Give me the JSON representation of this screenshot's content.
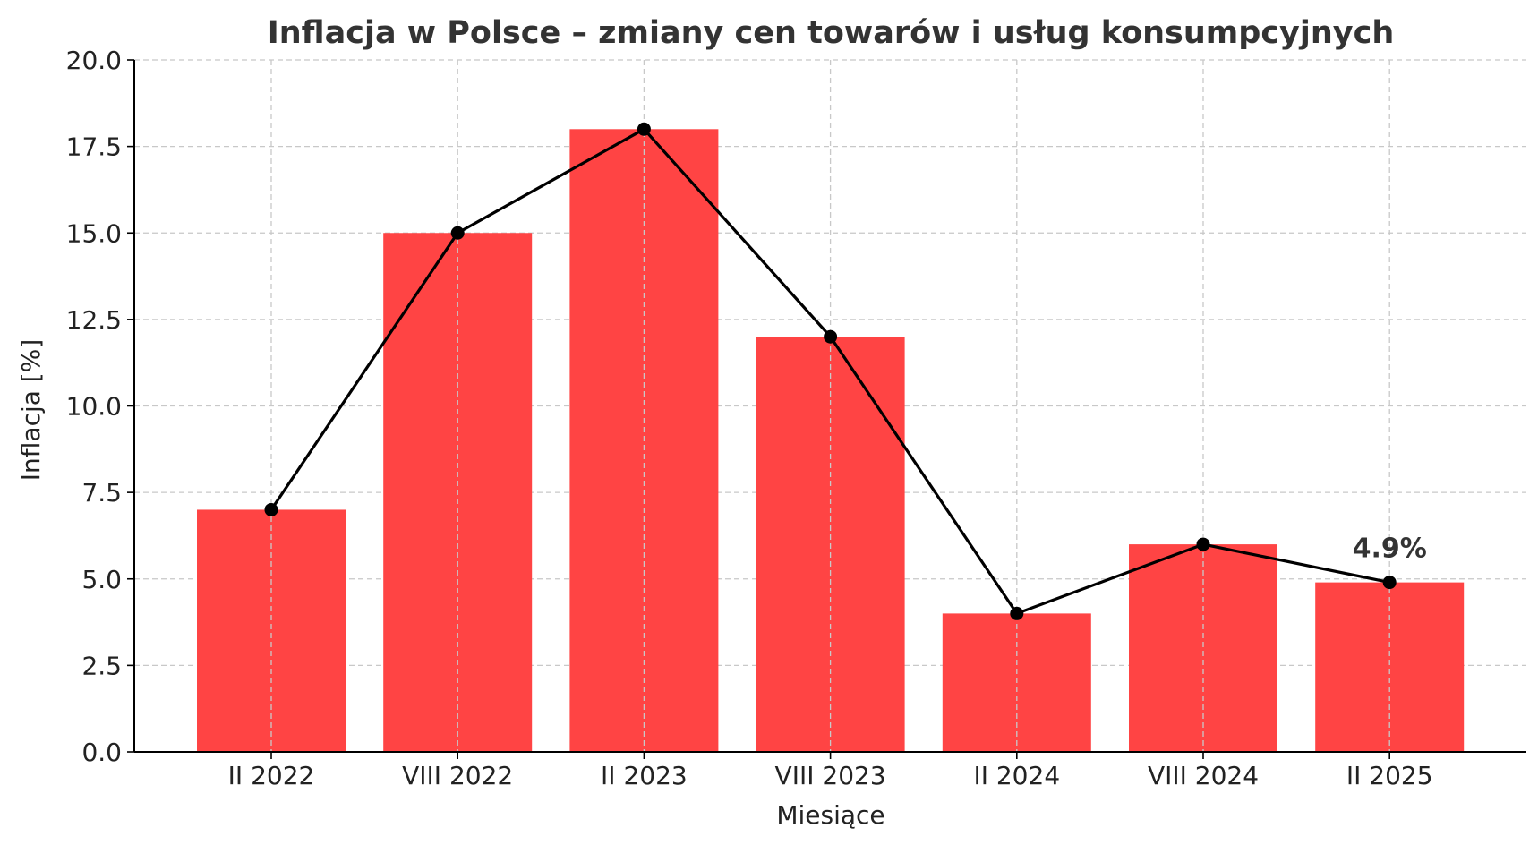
{
  "chart_data": {
    "type": "bar",
    "title": "Inflacja w Polsce – zmiany cen towarów i usług konsumpcyjnych",
    "xlabel": "Miesiące",
    "ylabel": "Inflacja [%]",
    "categories": [
      "II 2022",
      "VIII 2022",
      "II 2023",
      "VIII 2023",
      "II 2024",
      "VIII 2024",
      "II 2025"
    ],
    "values": [
      7.0,
      15.0,
      18.0,
      12.0,
      4.0,
      6.0,
      4.9
    ],
    "line_overlay": true,
    "ylim": [
      0,
      20
    ],
    "yticks": [
      "0.0",
      "2.5",
      "5.0",
      "7.5",
      "10.0",
      "12.5",
      "15.0",
      "17.5",
      "20.0"
    ],
    "grid": true,
    "bar_color": "#ff4444",
    "line_color": "#000000",
    "annotations": [
      {
        "category": "II 2025",
        "text": "4.9%"
      }
    ]
  }
}
